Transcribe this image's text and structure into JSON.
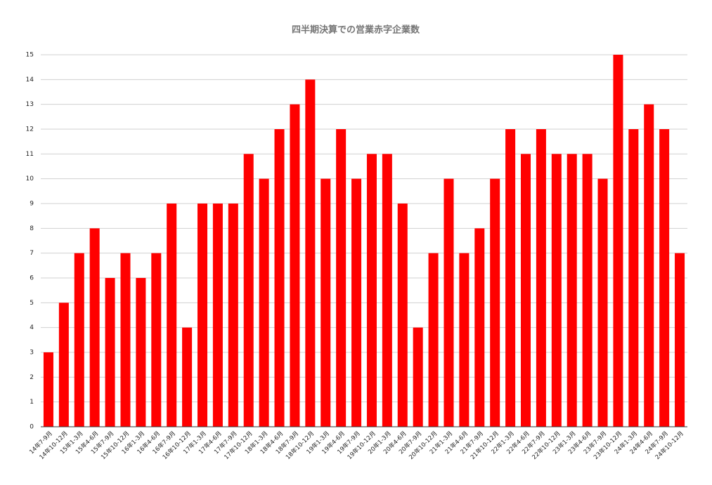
{
  "chart_data": {
    "type": "bar",
    "title": "四半期決算での営業赤字企業数",
    "categories": [
      "14年7-9月",
      "14年10-12月",
      "15年1-3月",
      "15年4-6月",
      "15年7-9月",
      "15年10-12月",
      "16年1-3月",
      "16年4-6月",
      "16年7-9月",
      "16年10-12月",
      "17年1-3月",
      "17年4-6月",
      "17年7-9月",
      "17年10-12月",
      "18年1-3月",
      "18年4-6月",
      "18年7-9月",
      "18年10-12月",
      "19年1-3月",
      "19年4-6月",
      "19年7-9月",
      "19年10-12月",
      "20年1-3月",
      "20年4-6月",
      "20年7-9月",
      "20年10-12月",
      "21年1-3月",
      "21年4-6月",
      "21年7-9月",
      "21年10-12月",
      "22年1-3月",
      "22年4-6月",
      "22年7-9月",
      "22年10-12月",
      "23年1-3月",
      "23年4-6月",
      "23年7-9月",
      "23年10-12月",
      "24年1-3月",
      "24年4-6月",
      "24年7-9月",
      "24年10-12月"
    ],
    "values": [
      3,
      5,
      7,
      8,
      6,
      7,
      6,
      7,
      9,
      4,
      9,
      9,
      9,
      11,
      10,
      12,
      13,
      14,
      10,
      12,
      10,
      11,
      11,
      9,
      4,
      7,
      10,
      7,
      8,
      10,
      12,
      11,
      12,
      11,
      11,
      11,
      10,
      15,
      12,
      13,
      12,
      7
    ],
    "color": "#ff0000",
    "ylim": [
      0,
      15
    ],
    "yticks": [
      0,
      1,
      2,
      3,
      4,
      5,
      6,
      7,
      8,
      9,
      10,
      11,
      12,
      13,
      14,
      15
    ],
    "grid": true
  }
}
